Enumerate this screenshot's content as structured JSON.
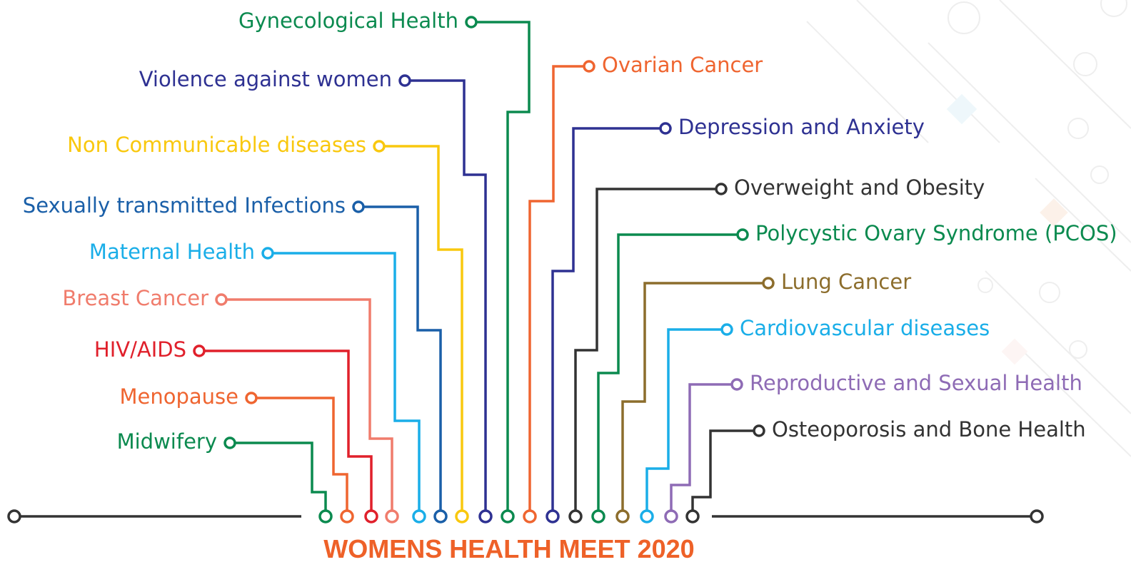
{
  "header": {
    "title": "WOMENS HEALTH MEET 2020"
  },
  "topics": [
    {
      "label": "Midwifery"
    },
    {
      "label": "Menopause"
    },
    {
      "label": "HIV/AIDS"
    },
    {
      "label": "Breast Cancer"
    },
    {
      "label": "Maternal Health"
    },
    {
      "label": "Sexually transmitted Infections"
    },
    {
      "label": "Non Communicable diseases"
    },
    {
      "label": "Violence against women"
    },
    {
      "label": "Gynecological Health"
    },
    {
      "label": "Ovarian Cancer"
    },
    {
      "label": "Depression and Anxiety"
    },
    {
      "label": "Overweight and Obesity"
    },
    {
      "label": "Polycystic Ovary Syndrome (PCOS)"
    },
    {
      "label": "Lung Cancer"
    },
    {
      "label": "Cardiovascular diseases"
    },
    {
      "label": "Reproductive and Sexual Health"
    },
    {
      "label": "Osteoporosis and Bone Health"
    }
  ]
}
